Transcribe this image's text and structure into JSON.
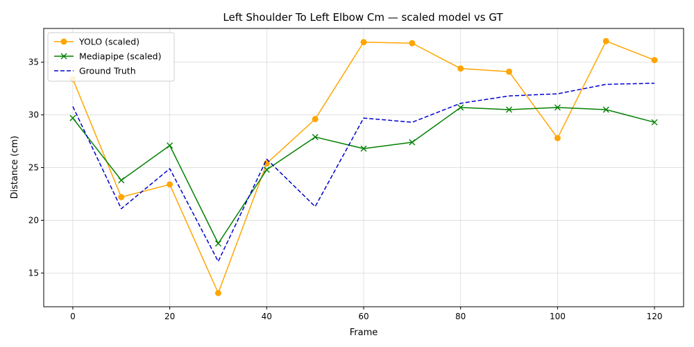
{
  "chart_data": {
    "type": "line",
    "title": "Left Shoulder To Left Elbow Cm — scaled model vs GT",
    "xlabel": "Frame",
    "ylabel": "Distance (cm)",
    "xlim": [
      -6,
      126
    ],
    "ylim": [
      11.8,
      38.2
    ],
    "xticks": [
      0,
      20,
      40,
      60,
      80,
      100,
      120
    ],
    "yticks": [
      15,
      20,
      25,
      30,
      35
    ],
    "grid": true,
    "legend_position": "top-left",
    "x": [
      0,
      10,
      20,
      30,
      40,
      50,
      60,
      70,
      80,
      90,
      100,
      110,
      120
    ],
    "series": [
      {
        "name": "YOLO (scaled)",
        "color": "#FFA500",
        "marker": "circle",
        "linestyle": "solid",
        "values": [
          33.4,
          22.2,
          23.4,
          13.1,
          25.4,
          29.6,
          36.9,
          36.8,
          34.4,
          34.1,
          27.8,
          37.0,
          35.2
        ]
      },
      {
        "name": "Mediapipe (scaled)",
        "color": "#008000",
        "marker": "x",
        "linestyle": "solid",
        "values": [
          29.7,
          23.8,
          27.1,
          17.8,
          24.8,
          27.9,
          26.8,
          27.4,
          30.7,
          30.5,
          30.7,
          30.5,
          29.3
        ]
      },
      {
        "name": "Ground Truth",
        "color": "#0000CD",
        "marker": "none",
        "linestyle": "dashed",
        "values": [
          30.8,
          21.1,
          24.9,
          16.1,
          25.8,
          21.3,
          29.7,
          29.3,
          31.1,
          31.8,
          32.0,
          32.9,
          33.0
        ]
      }
    ]
  }
}
